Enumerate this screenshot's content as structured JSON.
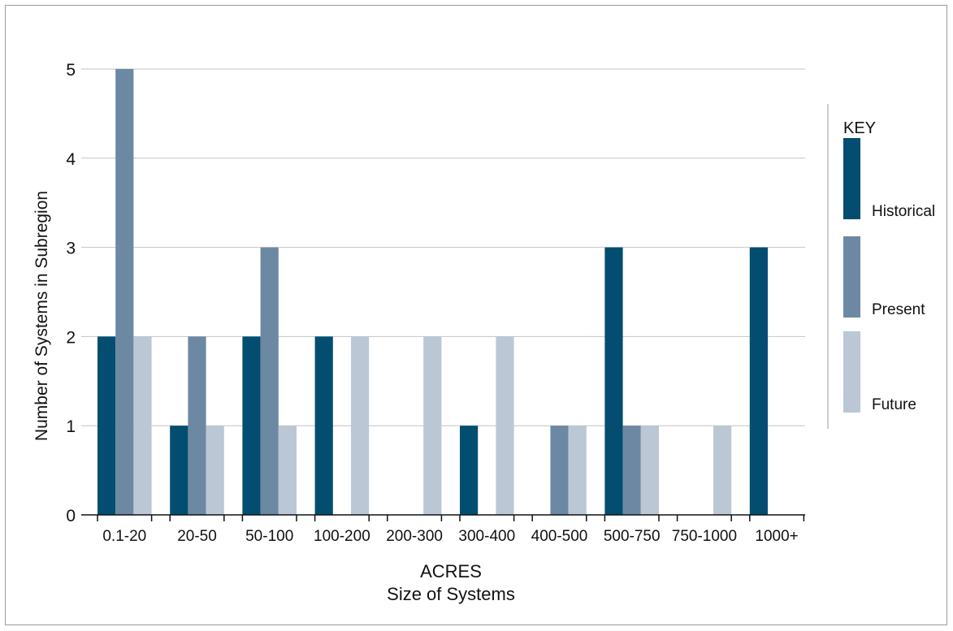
{
  "chart_data": {
    "type": "bar",
    "categories": [
      "0.1-20",
      "20-50",
      "50-100",
      "100-200",
      "200-300",
      "300-400",
      "400-500",
      "500-750",
      "750-1000",
      "1000+"
    ],
    "series": [
      {
        "name": "Historical",
        "color": "#024d70",
        "values": [
          2,
          1,
          2,
          2,
          0,
          1,
          0,
          3,
          0,
          3
        ]
      },
      {
        "name": "Present",
        "color": "#6d88a3",
        "values": [
          5,
          2,
          3,
          0,
          0,
          0,
          1,
          1,
          0,
          0
        ]
      },
      {
        "name": "Future",
        "color": "#bcc7d5",
        "values": [
          2,
          1,
          1,
          2,
          2,
          2,
          1,
          1,
          1,
          0
        ]
      }
    ],
    "xlabel": "ACRES",
    "xlabel2": "Size of Systems",
    "ylabel": "Number of Systems in Subregion",
    "ylim": [
      0,
      5
    ],
    "yticks": [
      0,
      1,
      2,
      3,
      4,
      5
    ],
    "grid": true,
    "legend_title": "KEY",
    "legend_placement": "right"
  }
}
